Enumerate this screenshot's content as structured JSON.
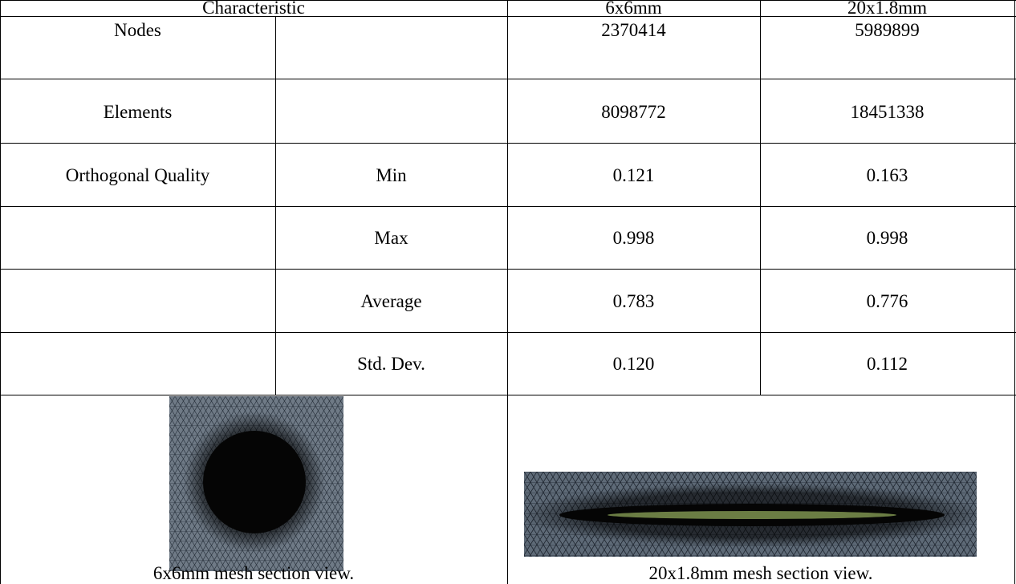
{
  "table": {
    "header": [
      "Characteristic",
      "6x6mm",
      "20x1.8mm"
    ],
    "rows": [
      {
        "label": "Nodes",
        "cells": [
          "2370414",
          "5989899"
        ]
      },
      {
        "label": "Elements",
        "cells": [
          "8098772",
          "18451338"
        ]
      },
      {
        "label": "Orthogonal Quality",
        "sub": "Min",
        "cells": [
          "0.121",
          "0.163"
        ]
      },
      {
        "sub": "Max",
        "cells": [
          "0.998",
          "0.998"
        ]
      },
      {
        "sub": "Average",
        "cells": [
          "0.783",
          "0.776"
        ]
      },
      {
        "sub": "Std. Dev.",
        "cells": [
          "0.120",
          "0.112"
        ]
      }
    ],
    "figures": [
      {
        "caption": "6x6mm mesh section view."
      },
      {
        "caption": "20x1.8mm mesh section view."
      }
    ]
  }
}
